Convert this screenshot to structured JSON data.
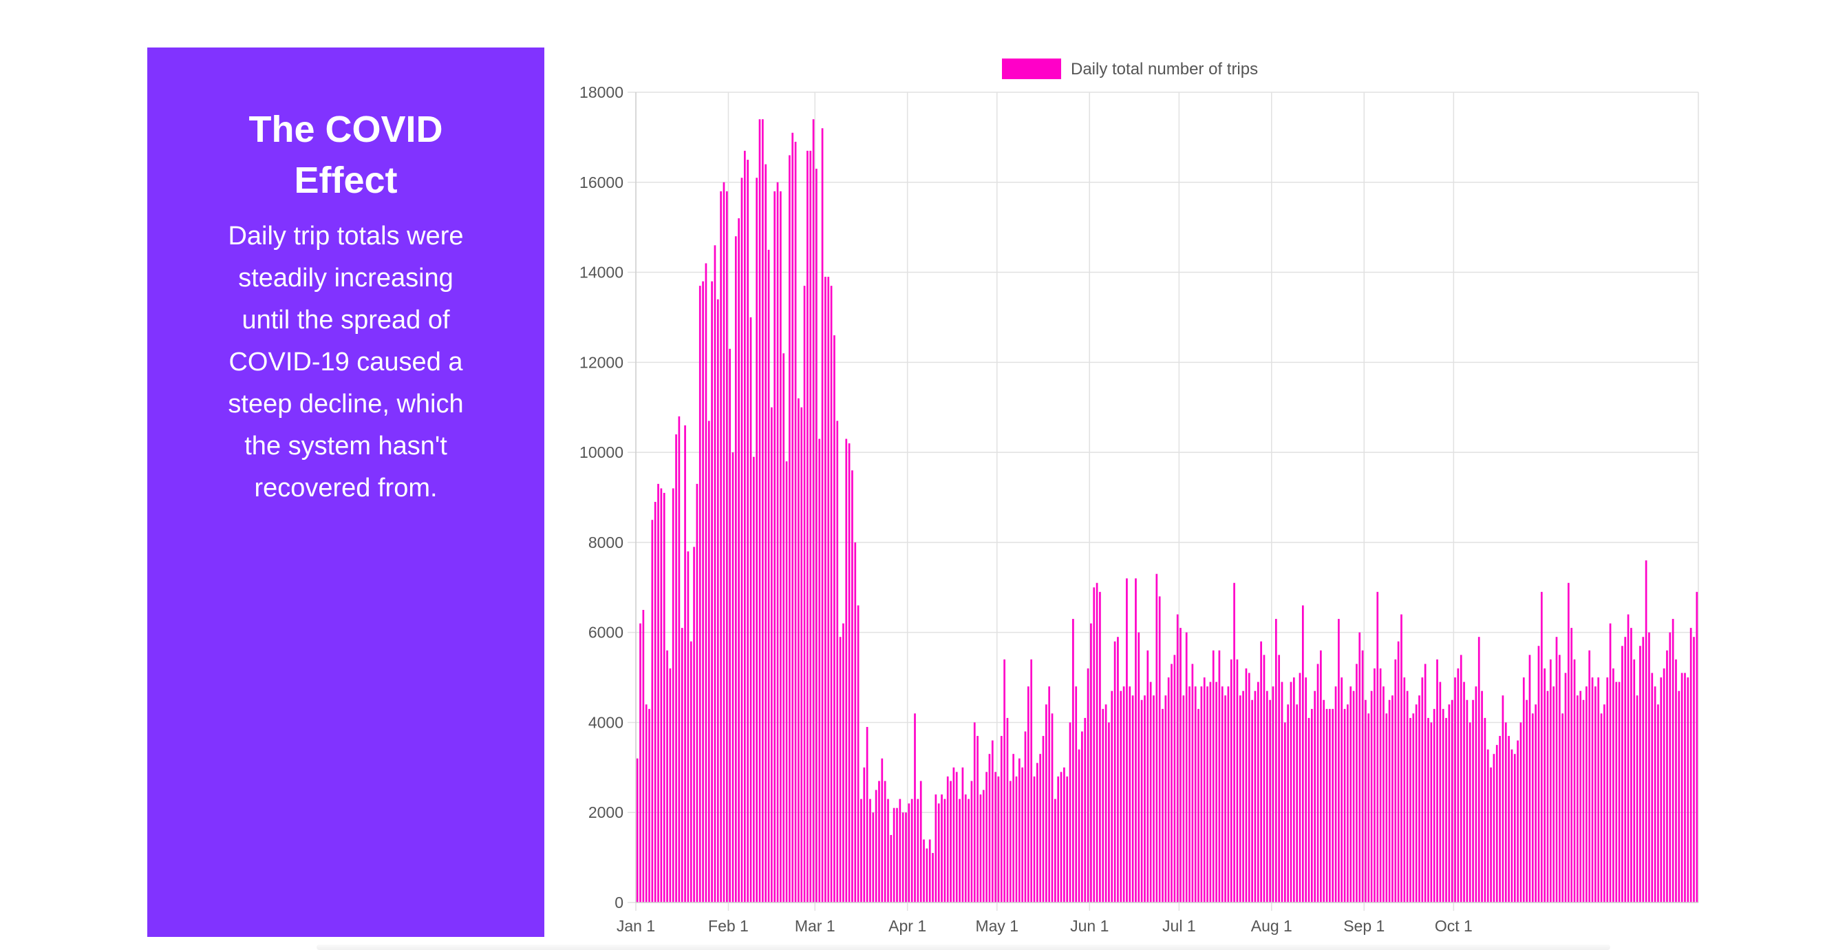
{
  "panel": {
    "title": "The COVID Effect",
    "text": "Daily trip totals were steadily increasing until the spread of COVID-19 caused a steep decline, which the system hasn't recovered from.",
    "background_color": "#8133ff"
  },
  "chart_data": {
    "type": "bar",
    "title": "",
    "xlabel": "",
    "ylabel": "",
    "ylim": [
      0,
      18000
    ],
    "yticks": [
      "0",
      "2000",
      "4000",
      "6000",
      "8000",
      "10000",
      "12000",
      "14000",
      "16000",
      "18000"
    ],
    "xticks": [
      "Jan 1",
      "Feb 1",
      "Mar 1",
      "Apr 1",
      "May 1",
      "Jun 1",
      "Jul 1",
      "Aug 1",
      "Sep 1",
      "Oct 1"
    ],
    "start_date": "Jan 1",
    "grid": true,
    "legend_position": "top-center",
    "bar_color": "#ff00c8",
    "series": [
      {
        "name": "Daily total number of trips",
        "values": [
          3200,
          6200,
          6500,
          4400,
          4300,
          8500,
          8900,
          9300,
          9200,
          9100,
          5600,
          5200,
          9200,
          10400,
          10800,
          6100,
          10600,
          7800,
          5800,
          7900,
          9300,
          13700,
          13800,
          14200,
          10700,
          13800,
          14600,
          13400,
          15800,
          16000,
          15800,
          12300,
          10000,
          14800,
          15200,
          16100,
          16700,
          16500,
          13000,
          9900,
          16100,
          17400,
          17400,
          16400,
          14500,
          11000,
          15800,
          16000,
          15800,
          12200,
          9800,
          16600,
          17100,
          16900,
          11200,
          11000,
          13700,
          16700,
          16700,
          17400,
          16300,
          10300,
          17200,
          13900,
          13900,
          13700,
          12600,
          10700,
          5900,
          6200,
          10300,
          10200,
          9600,
          8000,
          6600,
          2300,
          3000,
          3900,
          2300,
          2000,
          2500,
          2700,
          3200,
          2700,
          2300,
          1500,
          2100,
          2100,
          2300,
          2000,
          2000,
          2200,
          2300,
          4200,
          2300,
          2700,
          1400,
          1200,
          1400,
          1100,
          2400,
          2200,
          2400,
          2300,
          2800,
          2700,
          3000,
          2900,
          2300,
          3000,
          2400,
          2300,
          2700,
          4000,
          3700,
          2400,
          2500,
          2900,
          3300,
          3600,
          2900,
          2800,
          3700,
          5400,
          4100,
          2700,
          3300,
          2800,
          3200,
          3000,
          3800,
          4800,
          5400,
          2800,
          3100,
          3300,
          3700,
          4400,
          4800,
          4200,
          2300,
          2800,
          2900,
          3000,
          2800,
          4000,
          6300,
          4800,
          3400,
          3800,
          4100,
          5200,
          6200,
          7000,
          7100,
          6900,
          4300,
          4400,
          4000,
          4700,
          5800,
          5900,
          4700,
          4800,
          7200,
          4800,
          4600,
          7200,
          6000,
          4500,
          4600,
          5600,
          4900,
          4600,
          7300,
          6800,
          4300,
          4600,
          5000,
          5300,
          5500,
          6400,
          6100,
          4600,
          6000,
          4800,
          5300,
          4800,
          4300,
          4800,
          5000,
          4800,
          4900,
          5600,
          4900,
          5600,
          4800,
          4600,
          4800,
          5400,
          7100,
          5400,
          4600,
          4700,
          5200,
          5100,
          4500,
          4700,
          4900,
          5800,
          5500,
          4700,
          4500,
          4800,
          6300,
          5500,
          4900,
          4000,
          4400,
          4900,
          5000,
          4400,
          5100,
          6600,
          5000,
          4100,
          4300,
          4700,
          5300,
          5600,
          4500,
          4300,
          4300,
          4300,
          4800,
          6300,
          5000,
          4300,
          4400,
          4800,
          4700,
          5300,
          6000,
          5600,
          4500,
          4200,
          4700,
          5200,
          6900,
          5200,
          4800,
          4200,
          4500,
          4600,
          5400,
          5800,
          6400,
          5000,
          4700,
          4100,
          4200,
          4400,
          4600,
          5000,
          5300,
          4100,
          4000,
          4300,
          5400,
          4900,
          4300,
          4100,
          4400,
          4500,
          5000,
          5200,
          5500,
          4900,
          4500,
          4000,
          4500,
          4800,
          5900,
          4700,
          4100,
          3400,
          3000,
          3300,
          3500,
          3700,
          4600,
          4000,
          3700,
          3400,
          3300,
          3600,
          4000,
          5000,
          4500,
          5500,
          4200,
          4400,
          5700,
          6900,
          5200,
          4700,
          5400,
          4800,
          5900,
          5500,
          4200,
          5100,
          7100,
          6100,
          5400,
          4600,
          4700,
          4500,
          4800,
          5600,
          5000,
          4800,
          5000,
          4200,
          4400,
          5000,
          6200,
          5200,
          4900,
          4900,
          5700,
          5900,
          6400,
          6100,
          5400,
          4600,
          5700,
          5900,
          7600,
          6000,
          5100,
          4800,
          4400,
          5000,
          5200,
          5600,
          6000,
          6300,
          5400,
          4700,
          5100,
          5100,
          5000,
          6100,
          5900,
          6900
        ]
      }
    ]
  }
}
